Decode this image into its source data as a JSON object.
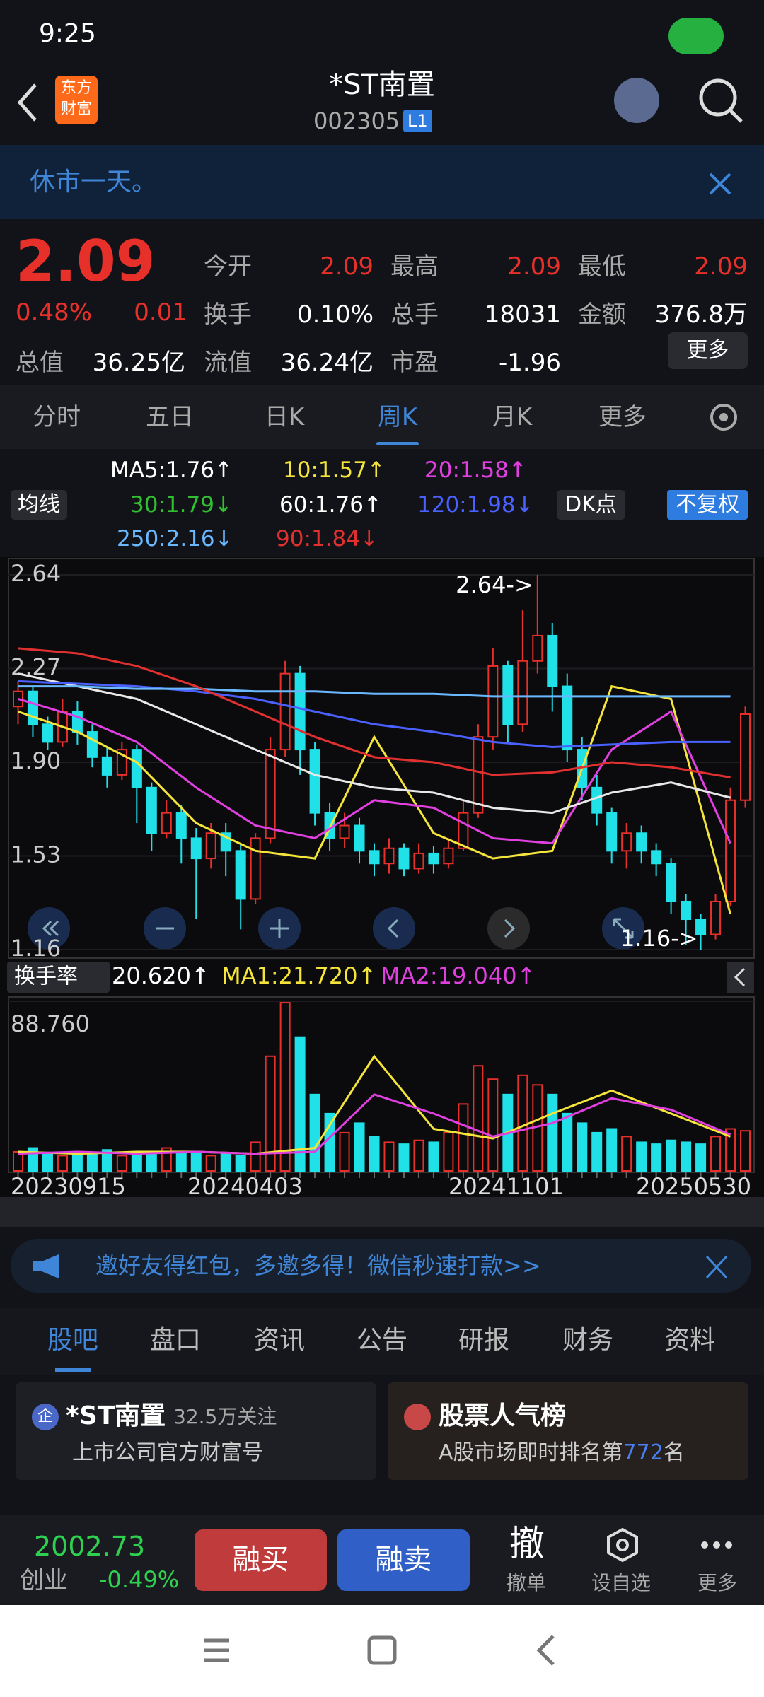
{
  "status_bar": {
    "time": "9:25"
  },
  "header": {
    "logo": [
      "东方",
      "财富"
    ],
    "title": "*ST南置",
    "code": "002305",
    "badge": "L1"
  },
  "notice": "休市一天。",
  "quote": {
    "price": "2.09",
    "change_pct": "0.48%",
    "change": "0.01",
    "fields": [
      [
        "今开",
        "2.09"
      ],
      [
        "最高",
        "2.09"
      ],
      [
        "最低",
        "2.09"
      ],
      [
        "换手",
        "0.10%"
      ],
      [
        "总手",
        "18031"
      ],
      [
        "金额",
        "376.8万"
      ],
      [
        "总值",
        "36.25亿"
      ],
      [
        "流值",
        "36.24亿"
      ],
      [
        "市盈",
        "-1.96"
      ]
    ],
    "more": "更多"
  },
  "period_tabs": [
    "分时",
    "五日",
    "日K",
    "周K",
    "月K",
    "更多"
  ],
  "ma_legend": {
    "selector": "均线",
    "dk": "DK点",
    "adjust": "不复权",
    "items": [
      {
        "text": "MA5:1.76↑",
        "color": "#ffffff"
      },
      {
        "text": "10:1.57↑",
        "color": "#f5e43a"
      },
      {
        "text": "20:1.58↑",
        "color": "#e040e0"
      },
      {
        "text": "30:1.79↓",
        "color": "#30c030"
      },
      {
        "text": "60:1.76↑",
        "color": "#ffffff"
      },
      {
        "text": "120:1.98↓",
        "color": "#4a60ff"
      },
      {
        "text": "250:2.16↓",
        "color": "#6ab8ff"
      },
      {
        "text": "90:1.84↓",
        "color": "#e03030"
      }
    ]
  },
  "chart_data": [
    {
      "type": "candlestick",
      "ylim": [
        1.16,
        2.64
      ],
      "yticks": [
        2.64,
        2.27,
        {
          "value": 1.9,
          "label": "1.90"
        },
        1.53,
        1.16
      ],
      "up_color": "#e8302a",
      "down_color": "#20e0e8",
      "open": [
        2.12,
        2.18,
        2.05,
        1.98,
        2.1,
        2.02,
        1.92,
        1.85,
        1.95,
        1.8,
        1.62,
        1.7,
        1.6,
        1.52,
        1.62,
        1.55,
        1.36,
        1.6,
        1.95,
        2.25,
        1.95,
        1.7,
        1.6,
        1.65,
        1.55,
        1.5,
        1.56,
        1.48,
        1.54,
        1.5,
        1.56,
        1.7,
        2.0,
        2.28,
        2.05,
        2.3,
        2.4,
        2.2,
        1.95,
        1.8,
        1.7,
        1.55,
        1.62,
        1.55,
        1.5,
        1.35,
        1.28,
        1.22,
        1.35,
        1.75
      ],
      "close": [
        2.18,
        2.05,
        1.98,
        2.1,
        2.02,
        1.92,
        1.85,
        1.95,
        1.8,
        1.62,
        1.7,
        1.6,
        1.52,
        1.62,
        1.55,
        1.36,
        1.6,
        1.95,
        2.25,
        1.95,
        1.7,
        1.6,
        1.65,
        1.55,
        1.5,
        1.56,
        1.48,
        1.54,
        1.5,
        1.56,
        1.7,
        2.0,
        2.28,
        2.05,
        2.3,
        2.4,
        2.2,
        1.95,
        1.8,
        1.7,
        1.55,
        1.62,
        1.55,
        1.5,
        1.35,
        1.28,
        1.22,
        1.35,
        1.75,
        2.09
      ],
      "high": [
        2.22,
        2.2,
        2.08,
        2.15,
        2.14,
        2.05,
        1.96,
        1.98,
        1.97,
        1.82,
        1.75,
        1.73,
        1.64,
        1.66,
        1.66,
        1.58,
        1.62,
        2.0,
        2.3,
        2.28,
        1.98,
        1.74,
        1.7,
        1.68,
        1.58,
        1.6,
        1.58,
        1.58,
        1.57,
        1.6,
        1.75,
        2.05,
        2.35,
        2.3,
        2.5,
        2.64,
        2.45,
        2.25,
        2.0,
        1.85,
        1.72,
        1.66,
        1.65,
        1.58,
        1.52,
        1.38,
        1.3,
        1.38,
        1.8,
        2.12
      ],
      "low": [
        2.05,
        2.0,
        1.95,
        1.96,
        1.97,
        1.88,
        1.8,
        1.83,
        1.66,
        1.55,
        1.6,
        1.5,
        1.28,
        1.48,
        1.45,
        1.24,
        1.34,
        1.58,
        1.92,
        1.85,
        1.65,
        1.55,
        1.56,
        1.5,
        1.45,
        1.46,
        1.45,
        1.46,
        1.46,
        1.48,
        1.55,
        1.68,
        1.95,
        1.98,
        2.02,
        2.25,
        2.1,
        1.9,
        1.75,
        1.65,
        1.5,
        1.48,
        1.5,
        1.45,
        1.3,
        1.18,
        1.16,
        1.2,
        1.33,
        1.72
      ],
      "series": [
        {
          "color": "#f5e43a",
          "values": [
            2.1,
            2.02,
            1.9,
            1.66,
            1.55,
            1.52,
            2.0,
            1.62,
            1.52,
            1.55,
            2.2,
            2.15,
            1.3
          ]
        },
        {
          "color": "#e040e0",
          "values": [
            2.15,
            2.08,
            1.98,
            1.8,
            1.65,
            1.6,
            1.75,
            1.72,
            1.6,
            1.58,
            1.95,
            2.1,
            1.58
          ]
        },
        {
          "color": "#e8e8e8",
          "values": [
            2.25,
            2.2,
            2.15,
            2.05,
            1.95,
            1.85,
            1.8,
            1.78,
            1.72,
            1.7,
            1.78,
            1.82,
            1.76
          ]
        },
        {
          "color": "#4a60ff",
          "values": [
            2.22,
            2.21,
            2.2,
            2.18,
            2.15,
            2.1,
            2.05,
            2.02,
            1.98,
            1.96,
            1.97,
            1.98,
            1.98
          ]
        },
        {
          "color": "#6ab8ff",
          "values": [
            2.2,
            2.2,
            2.19,
            2.19,
            2.18,
            2.18,
            2.17,
            2.17,
            2.16,
            2.16,
            2.16,
            2.16,
            2.16
          ]
        },
        {
          "color": "#e03030",
          "values": [
            2.35,
            2.33,
            2.28,
            2.2,
            2.1,
            2.0,
            1.92,
            1.9,
            1.85,
            1.86,
            1.9,
            1.88,
            1.84
          ]
        }
      ],
      "annotations": [
        "2.64->",
        "1.16->"
      ]
    },
    {
      "type": "bar",
      "selector": "换手率",
      "ylim": [
        0,
        88.76
      ],
      "yticks": [
        {
          "value": 88.76,
          "label": "88.760"
        }
      ],
      "legend_items": [
        {
          "text": "20.620↑",
          "color": "#ffffff"
        },
        {
          "text": "MA1:21.720↑",
          "color": "#f5e43a"
        },
        {
          "text": "MA2:19.040↑",
          "color": "#e040e0"
        }
      ],
      "values": [
        10,
        12,
        9,
        8,
        10,
        9,
        11,
        8,
        9,
        10,
        12,
        9,
        10,
        8,
        9,
        8,
        15,
        60,
        88,
        70,
        40,
        30,
        20,
        25,
        18,
        15,
        14,
        16,
        15,
        20,
        35,
        55,
        48,
        40,
        50,
        45,
        40,
        30,
        25,
        20,
        22,
        18,
        15,
        14,
        16,
        15,
        14,
        18,
        22,
        21
      ],
      "series": [
        {
          "color": "#f5e43a",
          "values": [
            10,
            9,
            10,
            10,
            9,
            12,
            60,
            22,
            17,
            30,
            42,
            30,
            18
          ]
        },
        {
          "color": "#e040e0",
          "values": [
            9,
            10,
            9,
            10,
            9,
            10,
            40,
            30,
            18,
            25,
            38,
            32,
            19
          ]
        }
      ],
      "x_labels": [
        "20230915",
        "20240403",
        "20241101",
        "20250530"
      ]
    }
  ],
  "ad": "邀好友得红包，多邀多得！微信秒速打款>>",
  "info_tabs": [
    "股吧",
    "盘口",
    "资讯",
    "公告",
    "研报",
    "财务",
    "资料"
  ],
  "cards": [
    {
      "icon": "企",
      "title": "*ST南置",
      "sub": "32.5万关注",
      "desc": "上市公司官方财富号"
    },
    {
      "title": "股票人气榜",
      "desc_pre": "A股市场即时排名第",
      "rank": "772",
      "desc_post": "名"
    }
  ],
  "bottom": {
    "index_value": "2002.73",
    "index_name": "创业",
    "index_change": "-0.49%",
    "buy": "融买",
    "sell": "融卖",
    "cancel_icon": "撤",
    "cancel": "撤单",
    "watch": "设自选",
    "more": "更多"
  }
}
